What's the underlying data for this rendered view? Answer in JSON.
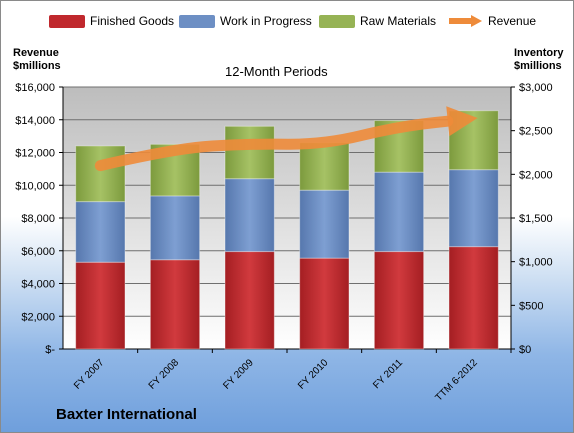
{
  "chart_data": {
    "type": "bar",
    "stacked": true,
    "title": "12-Month Periods",
    "categories": [
      "FY 2007",
      "FY 2008",
      "FY 2009",
      "FY 2010",
      "FY 2011",
      "TTM 6-2012"
    ],
    "series": [
      {
        "name": "Finished Goods",
        "values": [
          5300,
          5450,
          5950,
          5550,
          5950,
          6250
        ],
        "color": "#c0282d"
      },
      {
        "name": "Work in Progress",
        "values": [
          3700,
          3900,
          4450,
          4150,
          4850,
          4700
        ],
        "color": "#6d8fc4"
      },
      {
        "name": "Raw Materials",
        "values": [
          3400,
          3150,
          3200,
          2900,
          3150,
          3600
        ],
        "color": "#96b355"
      }
    ],
    "line_series": {
      "name": "Revenue",
      "values": [
        2100,
        2300,
        2350,
        2340,
        2550,
        2640
      ],
      "color": "#ee8b3a"
    },
    "ylabel_left": "Revenue\n$millions",
    "ylabel_right": "Inventory\n$millions",
    "ylim_left": [
      0,
      16000
    ],
    "ylim_right": [
      0,
      3000
    ],
    "yticks_left": [
      "$-",
      "$2,000",
      "$4,000",
      "$6,000",
      "$8,000",
      "$10,000",
      "$12,000",
      "$14,000",
      "$16,000"
    ],
    "yticks_right": [
      "$0",
      "$500",
      "$1,000",
      "$1,500",
      "$2,000",
      "$2,500",
      "$3,000"
    ],
    "grid": true,
    "legend": "top"
  },
  "legend": {
    "finished_goods": "Finished Goods",
    "work_in_progress": "Work in Progress",
    "raw_materials": "Raw Materials",
    "revenue": "Revenue"
  },
  "axis": {
    "left_title_1": "Revenue",
    "left_title_2": "$millions",
    "right_title_1": "Inventory",
    "right_title_2": "$millions"
  },
  "company": "Baxter International"
}
